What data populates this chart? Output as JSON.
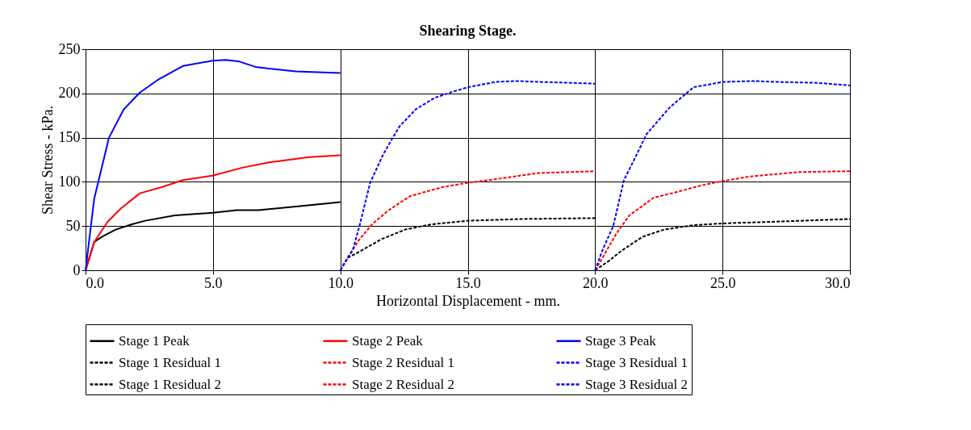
{
  "chart_data": {
    "type": "line",
    "title": "Shearing Stage.",
    "xlabel": "Horizontal Displacement - mm.",
    "ylabel": "Shear Stress - kPa.",
    "xlim": [
      0,
      30
    ],
    "xticks": [
      {
        "value": 0,
        "label": "0.0"
      },
      {
        "value": 5,
        "label": "5.0"
      },
      {
        "value": 10,
        "label": "10.0"
      },
      {
        "value": 15,
        "label": "15.0"
      },
      {
        "value": 20,
        "label": "20.0"
      },
      {
        "value": 25,
        "label": "25.0"
      },
      {
        "value": 30,
        "label": "30.0"
      }
    ],
    "ylim": [
      0,
      250
    ],
    "yticks": [
      0,
      50,
      100,
      150,
      200,
      250
    ],
    "grid": true,
    "legend": "bottom",
    "marker": "none",
    "series": [
      {
        "name": "Stage 1 Peak",
        "color": "#000000",
        "line_style": "solid",
        "x": [
          0,
          0.34,
          0.65,
          1.18,
          1.82,
          2.34,
          3.5,
          4.98,
          5.93,
          6.78,
          8.26,
          10
        ],
        "values": [
          0,
          32,
          38,
          46,
          52,
          56,
          62,
          65,
          68,
          68,
          72,
          77
        ]
      },
      {
        "name": "Stage 2 Peak",
        "color": "#ff0000",
        "line_style": "solid",
        "x": [
          0,
          0.34,
          0.87,
          1.39,
          2.13,
          2.98,
          3.82,
          4.98,
          6.15,
          7.2,
          8.78,
          10
        ],
        "values": [
          0,
          32,
          55,
          70,
          87,
          94,
          102,
          107,
          116,
          122,
          128,
          130
        ]
      },
      {
        "name": "Stage 3 Peak",
        "color": "#0000ff",
        "line_style": "solid",
        "x": [
          0,
          0.34,
          0.92,
          1.5,
          2.13,
          2.87,
          3.82,
          4.98,
          5.5,
          6.04,
          6.67,
          7.2,
          8.26,
          9.1,
          10
        ],
        "values": [
          0,
          81,
          150,
          182,
          201,
          216,
          231,
          237,
          238,
          236,
          230,
          228,
          225,
          224,
          223
        ]
      },
      {
        "name": "Stage 1 Residual 1",
        "color": "#000000",
        "line_style": "dashed",
        "x": [
          10,
          10.28,
          10.75,
          11.6,
          12.54,
          13.58,
          15,
          17.15,
          20
        ],
        "values": [
          0,
          14,
          21,
          35,
          46,
          52,
          56,
          58,
          59
        ]
      },
      {
        "name": "Stage 2 Residual 1",
        "color": "#ff0000",
        "line_style": "dashed",
        "x": [
          10,
          10.34,
          10.75,
          11.28,
          11.9,
          12.75,
          14,
          15,
          16.1,
          17.78,
          20
        ],
        "values": [
          0,
          17,
          35,
          53,
          68,
          84,
          94,
          99,
          103,
          110,
          112
        ]
      },
      {
        "name": "Stage 3 Residual 1",
        "color": "#0000ff",
        "line_style": "dashed",
        "x": [
          10,
          10.49,
          10.75,
          11.17,
          11.7,
          12.06,
          12.33,
          12.96,
          13.7,
          14.42,
          15,
          16.1,
          16.94,
          17.78,
          19.04,
          20
        ],
        "values": [
          0,
          23,
          50,
          99,
          132,
          150,
          163,
          182,
          195,
          202,
          207,
          213,
          214,
          213,
          212,
          211
        ]
      },
      {
        "name": "Stage 1 Residual 2",
        "color": "#000000",
        "line_style": "dashed",
        "x": [
          20,
          20.56,
          21.03,
          21.87,
          22.71,
          23.86,
          25.02,
          27.12,
          30
        ],
        "values": [
          0,
          11,
          22,
          38,
          46,
          51,
          53,
          55,
          58
        ]
      },
      {
        "name": "Stage 2 Residual 2",
        "color": "#ff0000",
        "line_style": "dashed",
        "x": [
          20,
          20.29,
          20.82,
          21.34,
          22.29,
          23.13,
          24.18,
          25.02,
          26.07,
          27.96,
          30
        ],
        "values": [
          0,
          14,
          41,
          62,
          82,
          88,
          96,
          101,
          106,
          111,
          112
        ]
      },
      {
        "name": "Stage 3 Residual 2",
        "color": "#0000ff",
        "line_style": "dashed",
        "x": [
          20,
          20.29,
          20.71,
          21.13,
          21.6,
          22.02,
          22.92,
          23.86,
          25.02,
          26.18,
          27.12,
          28.7,
          30
        ],
        "values": [
          0,
          23,
          50,
          102,
          129,
          154,
          184,
          207,
          213,
          214,
          213,
          212,
          209
        ]
      }
    ]
  }
}
